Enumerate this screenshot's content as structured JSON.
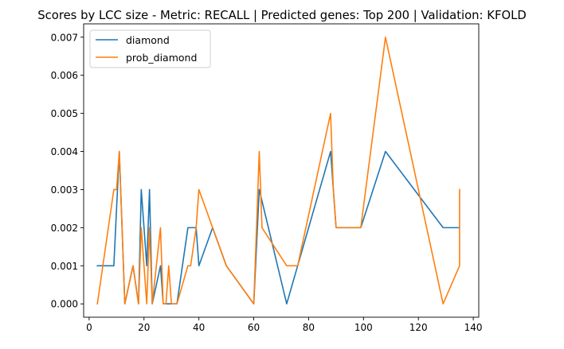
{
  "chart_data": {
    "type": "line",
    "title": "Scores by LCC size - Metric: RECALL | Predicted genes: Top 200 | Validation: KFOLD",
    "xlabel": "",
    "ylabel": "",
    "xlim": [
      -2,
      142
    ],
    "ylim": [
      -0.00035,
      0.00735
    ],
    "xticks": [
      0,
      20,
      40,
      60,
      80,
      100,
      120,
      140
    ],
    "yticks": [
      0.0,
      0.001,
      0.002,
      0.003,
      0.004,
      0.005,
      0.006,
      0.007
    ],
    "ytick_labels": [
      "0.000",
      "0.001",
      "0.002",
      "0.003",
      "0.004",
      "0.005",
      "0.006",
      "0.007"
    ],
    "grid": false,
    "legend_position": "upper-left",
    "series": [
      {
        "name": "diamond",
        "color": "#1f77b4",
        "x": [
          3,
          9,
          11,
          13,
          16,
          18,
          19,
          21,
          22,
          23,
          26,
          27,
          28,
          30,
          32,
          36,
          39,
          40,
          45,
          50,
          60,
          62,
          72,
          76,
          88,
          89,
          90,
          99,
          108,
          129,
          135
        ],
        "y": [
          0.001,
          0.001,
          0.004,
          0.0,
          0.001,
          0.0,
          0.003,
          0.001,
          0.003,
          0.0,
          0.001,
          0.0,
          0.0,
          0.0,
          0.0,
          0.002,
          0.002,
          0.001,
          0.002,
          0.001,
          0.0,
          0.003,
          0.0,
          0.001,
          0.004,
          0.003,
          0.002,
          0.002,
          0.004,
          0.002,
          0.002
        ]
      },
      {
        "name": "prob_diamond",
        "color": "#ff7f0e",
        "x": [
          3,
          9,
          10,
          11,
          13,
          16,
          18,
          19,
          21,
          22,
          23,
          26,
          27,
          28,
          29,
          30,
          32,
          36,
          37,
          39,
          40,
          45,
          50,
          60,
          62,
          63,
          72,
          76,
          88,
          89,
          90,
          99,
          108,
          129,
          135,
          135
        ],
        "y": [
          0.0,
          0.003,
          0.003,
          0.004,
          0.0,
          0.001,
          0.0,
          0.002,
          0.0,
          0.002,
          0.0,
          0.002,
          0.0,
          0.0,
          0.001,
          0.0,
          0.0,
          0.001,
          0.001,
          0.002,
          0.003,
          0.002,
          0.001,
          0.0,
          0.004,
          0.002,
          0.001,
          0.001,
          0.005,
          0.003,
          0.002,
          0.002,
          0.007,
          0.0,
          0.001,
          0.003
        ]
      }
    ]
  }
}
